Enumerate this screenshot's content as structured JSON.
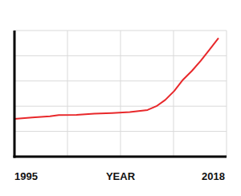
{
  "chart_data": {
    "type": "line",
    "xlabel": "YEAR",
    "x": [
      1995,
      1997,
      1999,
      2000,
      2002,
      2004,
      2006,
      2008,
      2010,
      2011,
      2012,
      2013,
      2014,
      2015,
      2016,
      2017,
      2018
    ],
    "values": [
      1.5,
      1.55,
      1.6,
      1.65,
      1.66,
      1.7,
      1.73,
      1.77,
      1.85,
      2.0,
      2.25,
      2.6,
      3.05,
      3.4,
      3.8,
      4.25,
      4.7
    ],
    "color": "#e8282b",
    "xlim": [
      1995,
      2018
    ],
    "xticks": [
      1995,
      2018
    ],
    "ylim": [
      0,
      5
    ],
    "yticks": [
      1,
      2,
      3,
      4
    ],
    "grid": true,
    "tick_labels": "x"
  }
}
